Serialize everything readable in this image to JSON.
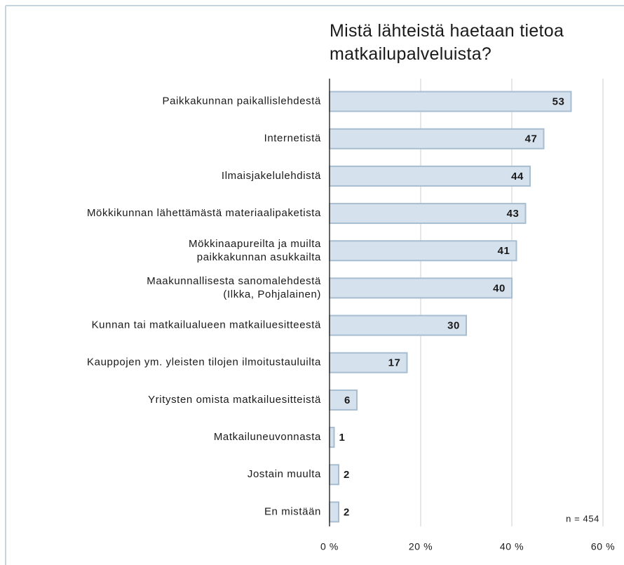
{
  "chart_data": {
    "type": "bar",
    "orientation": "horizontal",
    "title": "Mistä lähteistä haetaan tietoa\nmatkailupalveluista?",
    "categories": [
      "Paikkakunnan paikallislehdestä",
      "Internetistä",
      "Ilmaisjakelulehdistä",
      "Mökkikunnan lähettämästä materiaalipaketista",
      "Mökkinaapureilta ja muilta\npaikkakunnan asukkailta",
      "Maakunnallisesta sanomalehdestä\n(Ilkka, Pohjalainen)",
      "Kunnan tai matkailualueen matkailuesitteestä",
      "Kauppojen ym. yleisten tilojen ilmoitustauluilta",
      "Yritysten omista matkailuesitteistä",
      "Matkailuneuvonnasta",
      "Jostain muulta",
      "En mistään"
    ],
    "values": [
      53,
      47,
      44,
      43,
      41,
      40,
      30,
      17,
      6,
      1,
      2,
      2
    ],
    "color": "#d5e1ed",
    "edge_color": "#a7bdd1",
    "xlim": [
      0,
      60
    ],
    "xticks": [
      {
        "value": 0,
        "label": "0 %"
      },
      {
        "value": 20,
        "label": "20 %"
      },
      {
        "value": 40,
        "label": "40 %"
      },
      {
        "value": 60,
        "label": "60 %"
      }
    ],
    "grid": true,
    "annotation": "n = 454"
  }
}
